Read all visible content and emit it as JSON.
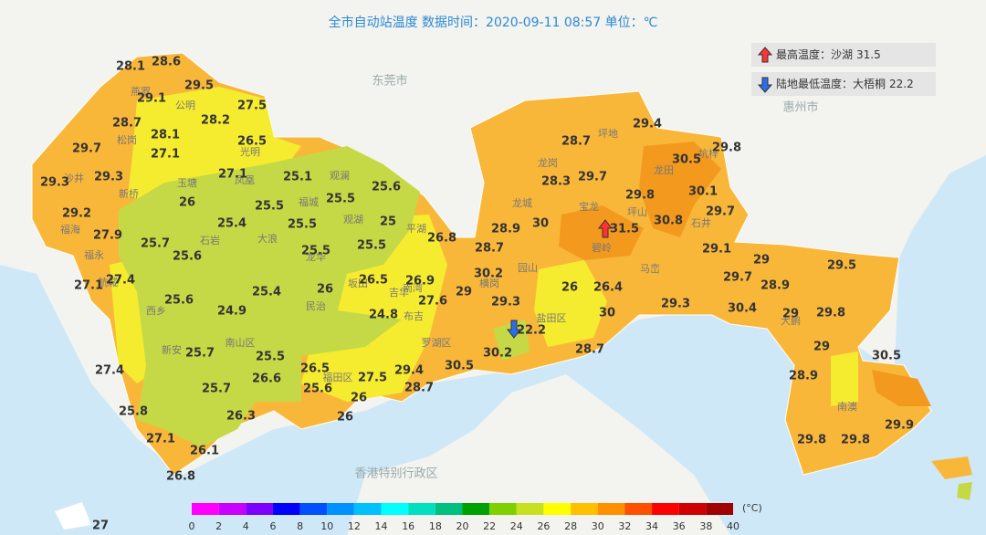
{
  "title": "全市自动站温度  数据时间：2020-09-11 08:57  单位：℃",
  "info": [
    {
      "label": "最高温度：沙湖",
      "value": 31.5
    },
    {
      "label": "陆地最低温度：大梧桐",
      "value": 22.2
    }
  ],
  "regions": [
    "东莞市",
    "惠州市",
    "香港特别行政区"
  ],
  "places": [
    "燕罗",
    "公明",
    "松岗",
    "光明",
    "凤凰",
    "沙井",
    "新桥",
    "玉塘",
    "福城",
    "观澜",
    "观湖",
    "平湖",
    "龙华",
    "大浪",
    "石岩",
    "福海",
    "福永",
    "航城",
    "西乡",
    "新安",
    "南山区",
    "民治",
    "坂田",
    "吉华",
    "南湾",
    "布吉",
    "罗湖区",
    "福田区",
    "龙岗",
    "坪地",
    "龙城",
    "宝龙",
    "坪山",
    "龙田",
    "坑梓",
    "石井",
    "碧岭",
    "马峦",
    "横岗",
    "园山",
    "盐田区",
    "大鹏",
    "南澳"
  ],
  "stations": [
    28.1,
    28.6,
    29.1,
    29.5,
    27.5,
    28.7,
    28.2,
    28.1,
    29.7,
    26.5,
    27.1,
    29.3,
    27.1,
    25.1,
    29.3,
    26,
    25.5,
    25.6,
    25.5,
    25.4,
    25.5,
    25,
    29.2,
    27.9,
    25.7,
    25.6,
    25.5,
    25.5,
    26.8,
    27.4,
    27.1,
    26.5,
    26.9,
    26,
    25.4,
    27.6,
    25.6,
    24.9,
    24.8,
    25.7,
    25.5,
    26.5,
    27.5,
    26.6,
    25.6,
    25.7,
    26,
    27.4,
    25.8,
    26.3,
    26,
    27.1,
    26.1,
    26.8,
    27,
    29.4,
    28.7,
    29.8,
    30.5,
    28.3,
    29.7,
    29.8,
    30.1,
    28.9,
    30,
    31.5,
    30.8,
    29.7,
    28.7,
    29.1,
    29,
    29.5,
    30.2,
    29.7,
    28.9,
    29,
    29.3,
    26,
    26.4,
    30.4,
    30,
    29.3,
    29,
    29.8,
    22.2,
    30.2,
    28.7,
    29.4,
    30.5,
    28.7,
    29,
    30.5,
    28.9,
    29.9,
    29.8,
    29.8
  ],
  "legend": {
    "ticks": [
      0,
      2,
      4,
      6,
      8,
      10,
      12,
      14,
      16,
      18,
      20,
      22,
      24,
      26,
      28,
      30,
      32,
      34,
      36,
      38,
      40
    ],
    "colors": [
      "#ff00ff",
      "#c800ff",
      "#7d00ff",
      "#0000ff",
      "#0050ff",
      "#0090ff",
      "#00c0ff",
      "#00ffff",
      "#00e0c0",
      "#00c080",
      "#00a000",
      "#80d000",
      "#c8e020",
      "#ffff00",
      "#ffc000",
      "#ff9000",
      "#ff5000",
      "#ff0000",
      "#d00000",
      "#a00000"
    ],
    "unit": "(°C)"
  }
}
